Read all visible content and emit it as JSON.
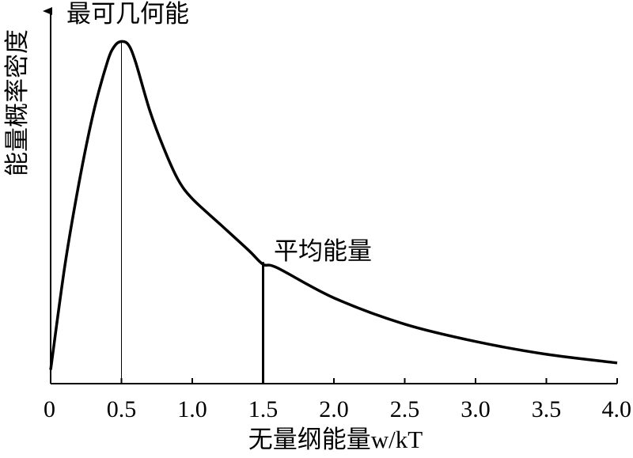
{
  "chart_data": {
    "type": "line",
    "xlabel": "无量纲能量w/kT",
    "ylabel": "能量概率密度",
    "xlim": [
      0,
      4.0
    ],
    "y_ticks_shown": false,
    "x_ticks": [
      "0",
      "0.5",
      "1.0",
      "1.5",
      "2.0",
      "2.5",
      "3.0",
      "3.5",
      "4.0"
    ],
    "grid": false,
    "series": [
      {
        "x": [
          0,
          0.1,
          0.2,
          0.3,
          0.4,
          0.45,
          0.5,
          0.55,
          0.6,
          0.7,
          0.8,
          0.9,
          1.0,
          1.2,
          1.4,
          1.5,
          1.6,
          2.0,
          2.5,
          3.0,
          3.5,
          4.0
        ],
        "y": [
          0.04,
          0.34,
          0.58,
          0.78,
          0.93,
          0.976,
          0.99,
          0.98,
          0.93,
          0.79,
          0.68,
          0.59,
          0.535,
          0.46,
          0.385,
          0.345,
          0.335,
          0.248,
          0.172,
          0.122,
          0.085,
          0.06
        ]
      }
    ],
    "annotations": [
      {
        "label": "最可几何能",
        "x": 0.5
      },
      {
        "label": "平均能量",
        "x": 1.5
      }
    ]
  }
}
